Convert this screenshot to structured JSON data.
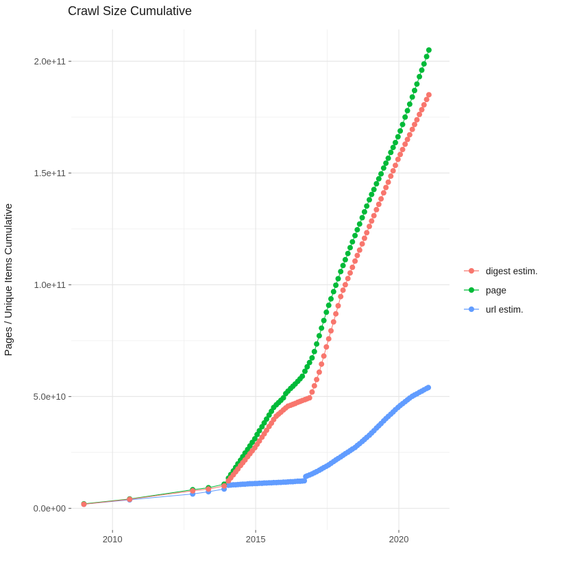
{
  "title": "Crawl Size Cumulative",
  "chart_data": {
    "type": "line",
    "title": "Crawl Size Cumulative",
    "xlabel": "",
    "ylabel": "Pages / Unique Items Cumulative",
    "value_unit": "1e9 (points listed as [year, billions])",
    "grid": "on",
    "legend_position": "right",
    "xlim": [
      2008.56,
      2021.77
    ],
    "ylim": [
      -9.7,
      214.2
    ],
    "x_ticks": {
      "values": [
        2010,
        2015,
        2020
      ],
      "labels": [
        "2010",
        "2015",
        "2020"
      ]
    },
    "x_minor": [
      2012.5,
      2017.5
    ],
    "y_ticks": {
      "values": [
        0,
        50,
        100,
        150,
        200
      ],
      "labels": [
        "0.0e+00",
        "5.0e+10",
        "1.0e+11",
        "1.5e+11",
        "2.0e+11"
      ]
    },
    "y_minor": [
      25,
      75,
      125,
      175
    ],
    "series": [
      {
        "name": "digest estim.",
        "color": "#F8766D",
        "points": [
          [
            2009.0,
            1.8
          ],
          [
            2010.6,
            4.0
          ],
          [
            2012.8,
            7.8
          ],
          [
            2013.35,
            8.6
          ],
          [
            2013.9,
            10.0
          ],
          [
            2014.05,
            12.3
          ],
          [
            2014.13,
            13.6
          ],
          [
            2014.22,
            15.0
          ],
          [
            2014.3,
            16.3
          ],
          [
            2014.38,
            17.6
          ],
          [
            2014.47,
            19.1
          ],
          [
            2014.55,
            20.4
          ],
          [
            2014.63,
            21.6
          ],
          [
            2014.72,
            23.1
          ],
          [
            2014.8,
            24.4
          ],
          [
            2014.88,
            25.7
          ],
          [
            2014.97,
            27.1
          ],
          [
            2015.05,
            28.6
          ],
          [
            2015.13,
            30.1
          ],
          [
            2015.22,
            31.8
          ],
          [
            2015.3,
            33.3
          ],
          [
            2015.38,
            34.9
          ],
          [
            2015.47,
            36.6
          ],
          [
            2015.55,
            38.1
          ],
          [
            2015.63,
            39.7
          ],
          [
            2015.72,
            41.2
          ],
          [
            2015.8,
            42.1
          ],
          [
            2015.88,
            43.0
          ],
          [
            2015.97,
            44.0
          ],
          [
            2016.05,
            44.9
          ],
          [
            2016.13,
            45.7
          ],
          [
            2016.22,
            46.1
          ],
          [
            2016.3,
            46.5
          ],
          [
            2016.38,
            46.9
          ],
          [
            2016.47,
            47.4
          ],
          [
            2016.55,
            47.8
          ],
          [
            2016.63,
            48.2
          ],
          [
            2016.72,
            48.6
          ],
          [
            2016.8,
            49.0
          ],
          [
            2016.88,
            49.4
          ],
          [
            2016.97,
            52.0
          ],
          [
            2017.05,
            54.8
          ],
          [
            2017.13,
            57.6
          ],
          [
            2017.22,
            60.9
          ],
          [
            2017.3,
            64.5
          ],
          [
            2017.38,
            68.1
          ],
          [
            2017.47,
            72.2
          ],
          [
            2017.55,
            75.8
          ],
          [
            2017.63,
            79.4
          ],
          [
            2017.72,
            83.4
          ],
          [
            2017.8,
            87.0
          ],
          [
            2017.88,
            90.6
          ],
          [
            2017.97,
            94.7
          ],
          [
            2018.05,
            97.6
          ],
          [
            2018.13,
            100.0
          ],
          [
            2018.22,
            102.8
          ],
          [
            2018.3,
            105.3
          ],
          [
            2018.38,
            107.8
          ],
          [
            2018.47,
            110.6
          ],
          [
            2018.55,
            113.1
          ],
          [
            2018.63,
            115.5
          ],
          [
            2018.72,
            118.3
          ],
          [
            2018.8,
            120.8
          ],
          [
            2018.88,
            123.3
          ],
          [
            2018.97,
            126.1
          ],
          [
            2019.05,
            128.5
          ],
          [
            2019.13,
            130.9
          ],
          [
            2019.22,
            133.6
          ],
          [
            2019.3,
            136.0
          ],
          [
            2019.38,
            138.4
          ],
          [
            2019.47,
            141.1
          ],
          [
            2019.55,
            143.5
          ],
          [
            2019.63,
            145.9
          ],
          [
            2019.72,
            148.6
          ],
          [
            2019.8,
            151.0
          ],
          [
            2019.88,
            153.4
          ],
          [
            2019.97,
            156.1
          ],
          [
            2020.05,
            158.3
          ],
          [
            2020.13,
            160.5
          ],
          [
            2020.22,
            162.9
          ],
          [
            2020.3,
            165.0
          ],
          [
            2020.38,
            167.1
          ],
          [
            2020.47,
            169.5
          ],
          [
            2020.55,
            171.7
          ],
          [
            2020.63,
            173.8
          ],
          [
            2020.72,
            176.2
          ],
          [
            2020.8,
            178.3
          ],
          [
            2020.88,
            180.5
          ],
          [
            2020.97,
            182.9
          ],
          [
            2021.05,
            185.0
          ]
        ]
      },
      {
        "name": "page",
        "color": "#00BA38",
        "points": [
          [
            2009.0,
            2.0
          ],
          [
            2010.6,
            4.2
          ],
          [
            2012.8,
            8.3
          ],
          [
            2013.35,
            9.2
          ],
          [
            2013.9,
            10.8
          ],
          [
            2014.05,
            13.5
          ],
          [
            2014.13,
            15.1
          ],
          [
            2014.22,
            16.7
          ],
          [
            2014.3,
            18.3
          ],
          [
            2014.38,
            19.9
          ],
          [
            2014.47,
            21.5
          ],
          [
            2014.55,
            23.1
          ],
          [
            2014.63,
            24.7
          ],
          [
            2014.72,
            26.3
          ],
          [
            2014.8,
            27.9
          ],
          [
            2014.88,
            29.5
          ],
          [
            2014.97,
            31.1
          ],
          [
            2015.05,
            33.0
          ],
          [
            2015.13,
            34.7
          ],
          [
            2015.22,
            36.5
          ],
          [
            2015.3,
            38.2
          ],
          [
            2015.38,
            39.9
          ],
          [
            2015.47,
            41.7
          ],
          [
            2015.55,
            43.4
          ],
          [
            2015.63,
            45.1
          ],
          [
            2015.72,
            46.3
          ],
          [
            2015.8,
            47.3
          ],
          [
            2015.88,
            48.3
          ],
          [
            2015.97,
            49.4
          ],
          [
            2016.05,
            51.3
          ],
          [
            2016.13,
            52.4
          ],
          [
            2016.22,
            53.6
          ],
          [
            2016.3,
            54.6
          ],
          [
            2016.38,
            55.6
          ],
          [
            2016.47,
            56.8
          ],
          [
            2016.55,
            57.9
          ],
          [
            2016.63,
            59.1
          ],
          [
            2016.72,
            61.3
          ],
          [
            2016.8,
            63.3
          ],
          [
            2016.88,
            65.2
          ],
          [
            2016.97,
            67.3
          ],
          [
            2017.05,
            70.1
          ],
          [
            2017.13,
            73.5
          ],
          [
            2017.22,
            77.2
          ],
          [
            2017.3,
            80.6
          ],
          [
            2017.38,
            84.0
          ],
          [
            2017.47,
            87.7
          ],
          [
            2017.55,
            90.8
          ],
          [
            2017.63,
            93.7
          ],
          [
            2017.72,
            96.9
          ],
          [
            2017.8,
            99.8
          ],
          [
            2017.88,
            102.7
          ],
          [
            2017.97,
            105.9
          ],
          [
            2018.05,
            108.6
          ],
          [
            2018.13,
            111.2
          ],
          [
            2018.22,
            114.0
          ],
          [
            2018.3,
            116.6
          ],
          [
            2018.38,
            119.2
          ],
          [
            2018.47,
            122.0
          ],
          [
            2018.55,
            124.6
          ],
          [
            2018.63,
            127.2
          ],
          [
            2018.72,
            130.0
          ],
          [
            2018.8,
            132.6
          ],
          [
            2018.88,
            135.2
          ],
          [
            2018.97,
            138.0
          ],
          [
            2019.05,
            140.4
          ],
          [
            2019.13,
            142.6
          ],
          [
            2019.22,
            145.2
          ],
          [
            2019.3,
            147.4
          ],
          [
            2019.38,
            149.6
          ],
          [
            2019.47,
            152.2
          ],
          [
            2019.55,
            154.4
          ],
          [
            2019.63,
            156.6
          ],
          [
            2019.72,
            159.2
          ],
          [
            2019.8,
            161.4
          ],
          [
            2019.88,
            163.6
          ],
          [
            2019.97,
            166.2
          ],
          [
            2020.05,
            168.8
          ],
          [
            2020.13,
            171.7
          ],
          [
            2020.22,
            175.0
          ],
          [
            2020.3,
            177.9
          ],
          [
            2020.38,
            180.8
          ],
          [
            2020.47,
            184.0
          ],
          [
            2020.55,
            186.9
          ],
          [
            2020.63,
            189.8
          ],
          [
            2020.72,
            193.1
          ],
          [
            2020.8,
            196.0
          ],
          [
            2020.88,
            198.8
          ],
          [
            2020.97,
            202.1
          ],
          [
            2021.05,
            205.0
          ]
        ]
      },
      {
        "name": "url estim.",
        "color": "#619CFF",
        "points": [
          [
            2009.0,
            1.8
          ],
          [
            2010.6,
            3.8
          ],
          [
            2012.8,
            6.4
          ],
          [
            2013.35,
            7.4
          ],
          [
            2013.9,
            8.6
          ],
          [
            2014.05,
            10.3
          ],
          [
            2014.13,
            10.4
          ],
          [
            2014.22,
            10.5
          ],
          [
            2014.3,
            10.5
          ],
          [
            2014.38,
            10.6
          ],
          [
            2014.47,
            10.7
          ],
          [
            2014.55,
            10.8
          ],
          [
            2014.63,
            10.8
          ],
          [
            2014.72,
            10.9
          ],
          [
            2014.8,
            11.0
          ],
          [
            2014.88,
            11.0
          ],
          [
            2014.97,
            11.1
          ],
          [
            2015.05,
            11.1
          ],
          [
            2015.13,
            11.2
          ],
          [
            2015.22,
            11.2
          ],
          [
            2015.3,
            11.3
          ],
          [
            2015.38,
            11.3
          ],
          [
            2015.47,
            11.4
          ],
          [
            2015.55,
            11.4
          ],
          [
            2015.63,
            11.5
          ],
          [
            2015.72,
            11.5
          ],
          [
            2015.8,
            11.6
          ],
          [
            2015.88,
            11.6
          ],
          [
            2015.97,
            11.7
          ],
          [
            2016.05,
            11.7
          ],
          [
            2016.13,
            11.8
          ],
          [
            2016.22,
            11.9
          ],
          [
            2016.3,
            11.9
          ],
          [
            2016.38,
            12.0
          ],
          [
            2016.47,
            12.1
          ],
          [
            2016.55,
            12.1
          ],
          [
            2016.63,
            12.2
          ],
          [
            2016.7,
            12.3
          ],
          [
            2016.75,
            14.2
          ],
          [
            2016.8,
            14.5
          ],
          [
            2016.88,
            14.9
          ],
          [
            2016.97,
            15.4
          ],
          [
            2017.05,
            15.9
          ],
          [
            2017.13,
            16.4
          ],
          [
            2017.22,
            17.0
          ],
          [
            2017.3,
            17.6
          ],
          [
            2017.38,
            18.2
          ],
          [
            2017.47,
            18.8
          ],
          [
            2017.55,
            19.4
          ],
          [
            2017.63,
            20.1
          ],
          [
            2017.72,
            20.9
          ],
          [
            2017.8,
            21.6
          ],
          [
            2017.88,
            22.3
          ],
          [
            2017.97,
            23.0
          ],
          [
            2018.05,
            23.7
          ],
          [
            2018.13,
            24.4
          ],
          [
            2018.22,
            25.1
          ],
          [
            2018.3,
            25.8
          ],
          [
            2018.38,
            26.5
          ],
          [
            2018.47,
            27.2
          ],
          [
            2018.55,
            28.1
          ],
          [
            2018.63,
            28.9
          ],
          [
            2018.72,
            29.9
          ],
          [
            2018.8,
            30.8
          ],
          [
            2018.88,
            31.7
          ],
          [
            2018.97,
            32.7
          ],
          [
            2019.05,
            33.7
          ],
          [
            2019.13,
            34.7
          ],
          [
            2019.22,
            35.9
          ],
          [
            2019.3,
            36.9
          ],
          [
            2019.38,
            37.9
          ],
          [
            2019.47,
            39.1
          ],
          [
            2019.55,
            40.1
          ],
          [
            2019.63,
            41.1
          ],
          [
            2019.72,
            42.1
          ],
          [
            2019.8,
            43.1
          ],
          [
            2019.88,
            44.1
          ],
          [
            2019.97,
            45.1
          ],
          [
            2020.05,
            46.0
          ],
          [
            2020.13,
            46.8
          ],
          [
            2020.22,
            47.7
          ],
          [
            2020.3,
            48.5
          ],
          [
            2020.38,
            49.3
          ],
          [
            2020.47,
            50.1
          ],
          [
            2020.55,
            50.7
          ],
          [
            2020.63,
            51.2
          ],
          [
            2020.72,
            51.9
          ],
          [
            2020.8,
            52.4
          ],
          [
            2020.88,
            53.0
          ],
          [
            2020.97,
            53.6
          ],
          [
            2021.03,
            54.0
          ]
        ]
      }
    ]
  },
  "legend": {
    "items": [
      {
        "label": "digest estim."
      },
      {
        "label": "page"
      },
      {
        "label": "url estim."
      }
    ]
  },
  "style": {
    "grid_major_color": "#e5e5e5",
    "grid_minor_color": "#f0f0f0",
    "tick_color": "#555555",
    "tick_label_color": "#4d4d4d",
    "background": "#ffffff"
  }
}
